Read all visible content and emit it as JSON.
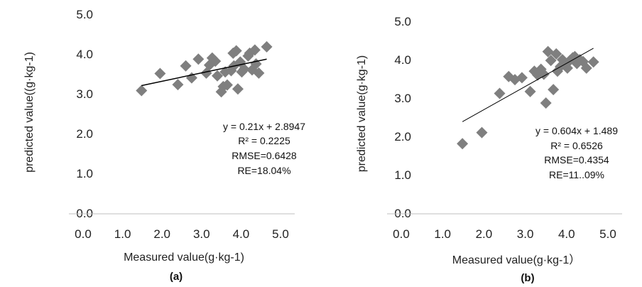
{
  "chart_data": [
    {
      "type": "scatter",
      "panel_label": "(a)",
      "xlabel": "Measured  value(g·kg-1)",
      "ylabel": "predicted value((g·kg-1)",
      "xlim": [
        0,
        5
      ],
      "ylim": [
        0,
        5
      ],
      "x_ticks": [
        "0.0",
        "1.0",
        "2.0",
        "3.0",
        "4.0",
        "5.0"
      ],
      "y_ticks": [
        "0.0",
        "1.0",
        "2.0",
        "3.0",
        "4.0",
        "5.0"
      ],
      "grid": false,
      "marker": "diamond",
      "marker_color": "#7f7f7f",
      "line_color": "#000000",
      "trendline": {
        "slope": 0.21,
        "intercept": 2.8947,
        "x_range": [
          1.48,
          4.65
        ]
      },
      "annotations": [
        "y = 0.21x + 2.8947",
        "R² = 0.2225",
        "RMSE=0.6428",
        "RE=18.04%"
      ],
      "points": [
        {
          "x": 1.48,
          "y": 3.08
        },
        {
          "x": 1.95,
          "y": 3.51
        },
        {
          "x": 2.4,
          "y": 3.23
        },
        {
          "x": 2.6,
          "y": 3.7
        },
        {
          "x": 2.75,
          "y": 3.4
        },
        {
          "x": 2.92,
          "y": 3.87
        },
        {
          "x": 3.12,
          "y": 3.52
        },
        {
          "x": 3.2,
          "y": 3.72
        },
        {
          "x": 3.27,
          "y": 3.9
        },
        {
          "x": 3.35,
          "y": 3.82
        },
        {
          "x": 3.4,
          "y": 3.45
        },
        {
          "x": 3.5,
          "y": 3.05
        },
        {
          "x": 3.55,
          "y": 3.18
        },
        {
          "x": 3.6,
          "y": 3.55
        },
        {
          "x": 3.65,
          "y": 3.22
        },
        {
          "x": 3.75,
          "y": 3.58
        },
        {
          "x": 3.8,
          "y": 4.02
        },
        {
          "x": 3.82,
          "y": 3.7
        },
        {
          "x": 3.88,
          "y": 4.08
        },
        {
          "x": 3.92,
          "y": 3.12
        },
        {
          "x": 3.98,
          "y": 3.8
        },
        {
          "x": 4.02,
          "y": 3.55
        },
        {
          "x": 4.08,
          "y": 3.62
        },
        {
          "x": 4.18,
          "y": 3.95
        },
        {
          "x": 4.22,
          "y": 4.02
        },
        {
          "x": 4.28,
          "y": 3.6
        },
        {
          "x": 4.35,
          "y": 4.1
        },
        {
          "x": 4.38,
          "y": 3.75
        },
        {
          "x": 4.45,
          "y": 3.52
        },
        {
          "x": 4.65,
          "y": 4.18
        }
      ]
    },
    {
      "type": "scatter",
      "panel_label": "(b)",
      "xlabel": "Measured  value(g·kg-1）",
      "ylabel": "predicted value(g·kg-1)",
      "xlim": [
        0,
        5
      ],
      "ylim": [
        0,
        5
      ],
      "x_ticks": [
        "0.0",
        "1.0",
        "2.0",
        "3.0",
        "4.0",
        "5.0"
      ],
      "y_ticks": [
        "0.0",
        "1.0",
        "2.0",
        "3.0",
        "4.0",
        "5.0"
      ],
      "grid": false,
      "marker": "diamond",
      "marker_color": "#7f7f7f",
      "line_color": "#000000",
      "trendline": {
        "slope": 0.604,
        "intercept": 1.489,
        "x_range": [
          1.48,
          4.65
        ]
      },
      "annotations": [
        "y = 0.604x + 1.489",
        "R² = 0.6526",
        "RMSE=0.4354",
        "RE=11..09%"
      ],
      "points": [
        {
          "x": 1.48,
          "y": 1.81
        },
        {
          "x": 1.95,
          "y": 2.1
        },
        {
          "x": 2.38,
          "y": 3.12
        },
        {
          "x": 2.6,
          "y": 3.56
        },
        {
          "x": 2.75,
          "y": 3.48
        },
        {
          "x": 2.92,
          "y": 3.53
        },
        {
          "x": 3.12,
          "y": 3.17
        },
        {
          "x": 3.22,
          "y": 3.7
        },
        {
          "x": 3.3,
          "y": 3.6
        },
        {
          "x": 3.38,
          "y": 3.75
        },
        {
          "x": 3.45,
          "y": 3.62
        },
        {
          "x": 3.5,
          "y": 2.87
        },
        {
          "x": 3.55,
          "y": 4.21
        },
        {
          "x": 3.62,
          "y": 3.98
        },
        {
          "x": 3.68,
          "y": 3.22
        },
        {
          "x": 3.75,
          "y": 4.15
        },
        {
          "x": 3.78,
          "y": 3.7
        },
        {
          "x": 3.85,
          "y": 3.82
        },
        {
          "x": 3.9,
          "y": 4.0
        },
        {
          "x": 3.95,
          "y": 3.92
        },
        {
          "x": 4.02,
          "y": 3.78
        },
        {
          "x": 4.08,
          "y": 3.98
        },
        {
          "x": 4.15,
          "y": 4.05
        },
        {
          "x": 4.2,
          "y": 4.08
        },
        {
          "x": 4.25,
          "y": 3.9
        },
        {
          "x": 4.32,
          "y": 4.0
        },
        {
          "x": 4.4,
          "y": 3.95
        },
        {
          "x": 4.48,
          "y": 3.78
        },
        {
          "x": 4.65,
          "y": 3.94
        }
      ]
    }
  ]
}
